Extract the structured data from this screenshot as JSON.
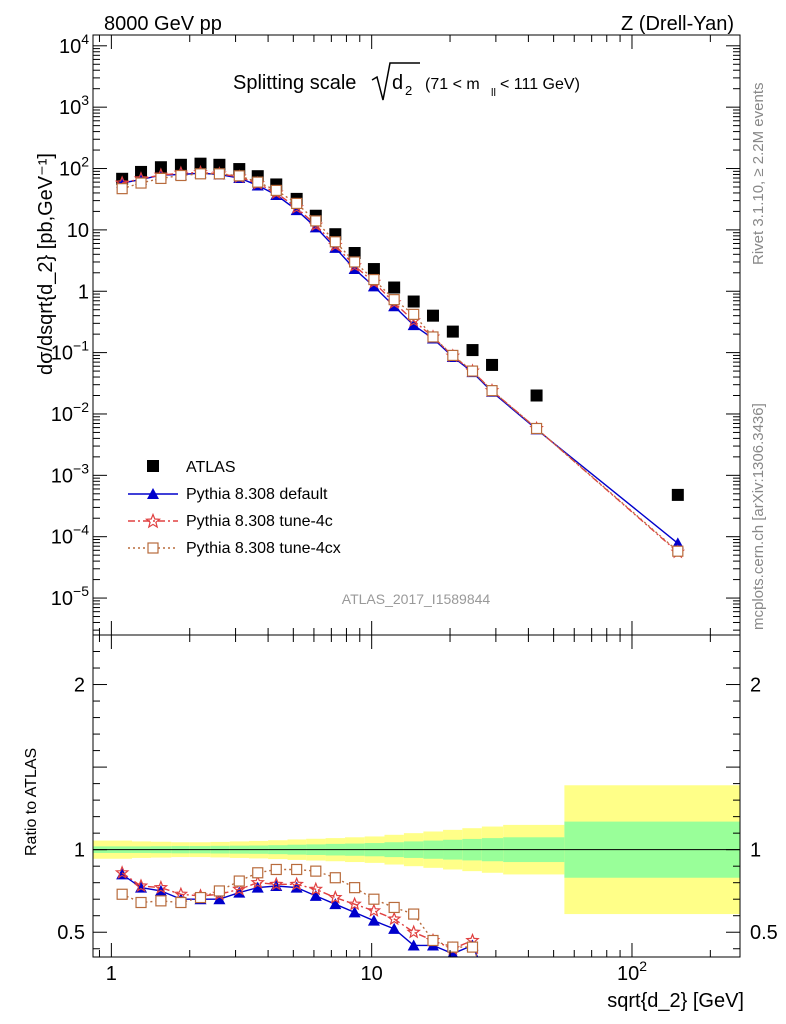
{
  "header": {
    "left": "8000 GeV pp",
    "right": "Z (Drell-Yan)"
  },
  "side": {
    "rivet": "Rivet 3.1.10, ≥ 2.2M events",
    "mcplots": "mcplots.cern.ch [arXiv:1306.3436]"
  },
  "watermark": "ATLAS_2017_I1589844",
  "title": {
    "main": "Splitting scale",
    "sqrt_arg": "d",
    "sqrt_sub": "2",
    "cut_pre": "(71 < m",
    "cut_sub": "ll",
    "cut_post": " < 111 GeV)"
  },
  "legend": [
    "ATLAS",
    "Pythia 8.308 default",
    "Pythia 8.308 tune-4c",
    "Pythia 8.308 tune-4cx"
  ],
  "colors": {
    "atlas": "#000000",
    "default": "#0000cc",
    "tune4c": "#e04040",
    "tune4cx": "#b86b3c",
    "band_inner": "#99ff99",
    "band_outer": "#ffff88"
  },
  "chart_data": {
    "type": "scatter",
    "xlabel": "sqrt{d_2} [GeV]",
    "ylabel": "dσ/dsqrt{d_2} [pb,GeV⁻¹]",
    "ratio_ylabel": "Ratio to ATLAS",
    "xscale": "log",
    "xlim": [
      0.85,
      260
    ],
    "ylim": [
      2.5e-06,
      15000
    ],
    "ratio_ylim": [
      0.35,
      2.3
    ],
    "xticks": [
      {
        "v": 1,
        "label": "1"
      },
      {
        "v": 10,
        "label": "10"
      },
      {
        "v": 100,
        "label": "10",
        "sup": "2"
      }
    ],
    "yticks": [
      {
        "v": 10000,
        "label": "10",
        "sup": "4"
      },
      {
        "v": 1000,
        "label": "10",
        "sup": "3"
      },
      {
        "v": 100,
        "label": "10",
        "sup": "2"
      },
      {
        "v": 10,
        "label": "10"
      },
      {
        "v": 1,
        "label": "1"
      },
      {
        "v": 0.1,
        "label": "10",
        "sup": "−1"
      },
      {
        "v": 0.01,
        "label": "10",
        "sup": "−2"
      },
      {
        "v": 0.001,
        "label": "10",
        "sup": "−3"
      },
      {
        "v": 0.0001,
        "label": "10",
        "sup": "−4"
      },
      {
        "v": 1e-05,
        "label": "10",
        "sup": "−5"
      }
    ],
    "ratio_yticks": [
      {
        "v": 2,
        "label": "2"
      },
      {
        "v": 1,
        "label": "1"
      },
      {
        "v": 0.5,
        "label": "0.5"
      }
    ],
    "x": [
      1.1,
      1.3,
      1.55,
      1.85,
      2.2,
      2.6,
      3.1,
      3.65,
      4.3,
      5.15,
      6.1,
      7.25,
      8.6,
      10.2,
      12.2,
      14.5,
      17.2,
      20.5,
      24.4,
      29,
      43,
      150
    ],
    "series": [
      {
        "name": "ATLAS",
        "values": [
          68,
          88,
          105,
          115,
          120,
          115,
          98,
          75,
          55,
          32,
          17,
          8.5,
          4.2,
          2.3,
          1.15,
          0.68,
          0.4,
          0.22,
          0.11,
          0.063,
          0.02,
          0.00048
        ]
      },
      {
        "name": "Pythia 8.308 default",
        "values": [
          58,
          66,
          78,
          80,
          84,
          80,
          70,
          53,
          37,
          21,
          11,
          5.1,
          2.3,
          1.2,
          0.57,
          0.28,
          0.17,
          0.085,
          0.048,
          0.023,
          0.0056,
          7.8e-05
        ]
      },
      {
        "name": "Pythia 8.308 tune-4c",
        "values": [
          58,
          68,
          78,
          84,
          86,
          82,
          73,
          57,
          40,
          23,
          12,
          5.6,
          2.6,
          1.4,
          0.65,
          0.33,
          0.18,
          0.088,
          0.05,
          0.024,
          0.0058,
          5.6e-05
        ]
      },
      {
        "name": "Pythia 8.308 tune-4cx",
        "values": [
          47,
          58,
          69,
          77,
          82,
          82,
          76,
          60,
          44,
          27,
          14,
          6.4,
          3.0,
          1.55,
          0.73,
          0.42,
          0.18,
          0.09,
          0.05,
          0.024,
          0.0058,
          5.8e-05
        ]
      }
    ],
    "ratio": {
      "x": [
        1.1,
        1.3,
        1.55,
        1.85,
        2.2,
        2.6,
        3.1,
        3.65,
        4.3,
        5.15,
        6.1,
        7.25,
        8.6,
        10.2,
        12.2,
        14.5,
        17.2,
        20.5,
        24.4
      ],
      "series": [
        {
          "name": "Pythia 8.308 default",
          "values": [
            0.85,
            0.77,
            0.75,
            0.7,
            0.7,
            0.7,
            0.74,
            0.77,
            0.78,
            0.77,
            0.72,
            0.67,
            0.62,
            0.57,
            0.52,
            0.42,
            0.42,
            0.37,
            0.42
          ]
        },
        {
          "name": "Pythia 8.308 tune-4c",
          "values": [
            0.86,
            0.78,
            0.77,
            0.73,
            0.72,
            0.73,
            0.76,
            0.8,
            0.79,
            0.79,
            0.76,
            0.71,
            0.67,
            0.63,
            0.58,
            0.5,
            0.45,
            0.4,
            0.45
          ]
        },
        {
          "name": "Pythia 8.308 tune-4cx",
          "values": [
            0.73,
            0.68,
            0.69,
            0.68,
            0.71,
            0.75,
            0.81,
            0.86,
            0.88,
            0.88,
            0.87,
            0.83,
            0.77,
            0.7,
            0.65,
            0.61,
            0.45,
            0.41,
            0.41
          ]
        }
      ]
    },
    "bands": [
      {
        "x0": 0.85,
        "x1": 1.2,
        "inner": 0.02,
        "outer": 0.055
      },
      {
        "x0": 1.2,
        "x1": 1.42,
        "inner": 0.02,
        "outer": 0.05
      },
      {
        "x0": 1.42,
        "x1": 1.7,
        "inner": 0.021,
        "outer": 0.048
      },
      {
        "x0": 1.7,
        "x1": 2.0,
        "inner": 0.022,
        "outer": 0.045
      },
      {
        "x0": 2.0,
        "x1": 2.4,
        "inner": 0.022,
        "outer": 0.045
      },
      {
        "x0": 2.4,
        "x1": 2.85,
        "inner": 0.023,
        "outer": 0.047
      },
      {
        "x0": 2.85,
        "x1": 3.38,
        "inner": 0.024,
        "outer": 0.05
      },
      {
        "x0": 3.38,
        "x1": 4.0,
        "inner": 0.025,
        "outer": 0.053
      },
      {
        "x0": 4.0,
        "x1": 4.75,
        "inner": 0.027,
        "outer": 0.057
      },
      {
        "x0": 4.75,
        "x1": 5.6,
        "inner": 0.03,
        "outer": 0.062
      },
      {
        "x0": 5.6,
        "x1": 6.65,
        "inner": 0.032,
        "outer": 0.066
      },
      {
        "x0": 6.65,
        "x1": 7.9,
        "inner": 0.035,
        "outer": 0.07
      },
      {
        "x0": 7.9,
        "x1": 9.4,
        "inner": 0.037,
        "outer": 0.075
      },
      {
        "x0": 9.4,
        "x1": 11.2,
        "inner": 0.04,
        "outer": 0.08
      },
      {
        "x0": 11.2,
        "x1": 13.3,
        "inner": 0.045,
        "outer": 0.09
      },
      {
        "x0": 13.3,
        "x1": 15.8,
        "inner": 0.05,
        "outer": 0.1
      },
      {
        "x0": 15.8,
        "x1": 18.8,
        "inner": 0.055,
        "outer": 0.11
      },
      {
        "x0": 18.8,
        "x1": 22.3,
        "inner": 0.06,
        "outer": 0.12
      },
      {
        "x0": 22.3,
        "x1": 26.5,
        "inner": 0.065,
        "outer": 0.13
      },
      {
        "x0": 26.5,
        "x1": 32,
        "inner": 0.07,
        "outer": 0.14
      },
      {
        "x0": 32,
        "x1": 55,
        "inner": 0.075,
        "outer": 0.15
      },
      {
        "x0": 55,
        "x1": 260,
        "inner": 0.17,
        "outer": 0.39
      }
    ]
  }
}
